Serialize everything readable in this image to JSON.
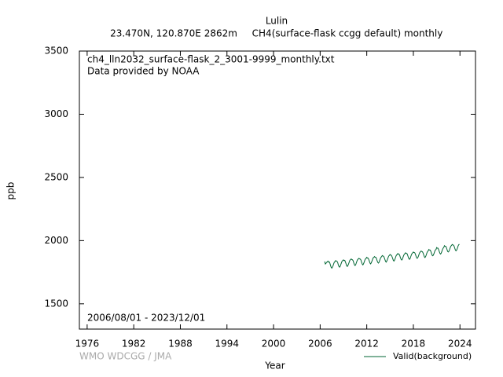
{
  "chart_data": {
    "type": "line",
    "title": "Lulin",
    "subtitle": [
      "23.470N, 120.870E 2862m",
      "CH4(surface-flask ccgg default) monthly"
    ],
    "annotations": [
      "ch4_lln2032_surface-flask_2_3001-9999_monthly.txt",
      "Data provided by NOAA",
      "2006/08/01 - 2023/12/01"
    ],
    "credit": "WMO WDCGG / JMA",
    "xlabel": "Year",
    "ylabel": "ppb",
    "xlim": [
      1975,
      2026
    ],
    "ylim": [
      1300,
      3500
    ],
    "xticks": [
      1976,
      1982,
      1988,
      1994,
      2000,
      2006,
      2012,
      2018,
      2024
    ],
    "yticks": [
      1500,
      2000,
      2500,
      3000,
      3500
    ],
    "legend": "bottom-right",
    "x": [
      2006.58,
      2006.67,
      2006.75,
      2006.83,
      2006.92,
      2007,
      2007.08,
      2007.17,
      2007.25,
      2007.33,
      2007.42,
      2007.5,
      2007.58,
      2007.67,
      2007.75,
      2007.83,
      2007.92,
      2008,
      2008.08,
      2008.17,
      2008.25,
      2008.33,
      2008.42,
      2008.5,
      2008.58,
      2008.67,
      2008.75,
      2008.83,
      2008.92,
      2009,
      2009.08,
      2009.17,
      2009.25,
      2009.33,
      2009.42,
      2009.5,
      2009.58,
      2009.67,
      2009.75,
      2009.83,
      2009.92,
      2010,
      2010.08,
      2010.17,
      2010.25,
      2010.33,
      2010.42,
      2010.5,
      2010.58,
      2010.67,
      2010.75,
      2010.83,
      2010.92,
      2011,
      2011.08,
      2011.17,
      2011.25,
      2011.33,
      2011.42,
      2011.5,
      2011.58,
      2011.67,
      2011.75,
      2011.83,
      2011.92,
      2012,
      2012.08,
      2012.17,
      2012.25,
      2012.33,
      2012.42,
      2012.5,
      2012.58,
      2012.67,
      2012.75,
      2012.83,
      2012.92,
      2013,
      2013.08,
      2013.17,
      2013.25,
      2013.33,
      2013.42,
      2013.5,
      2013.58,
      2013.67,
      2013.75,
      2013.83,
      2013.92,
      2014,
      2014.08,
      2014.17,
      2014.25,
      2014.33,
      2014.42,
      2014.5,
      2014.58,
      2014.67,
      2014.75,
      2014.83,
      2014.92,
      2015,
      2015.08,
      2015.17,
      2015.25,
      2015.33,
      2015.42,
      2015.5,
      2015.58,
      2015.67,
      2015.75,
      2015.83,
      2015.92,
      2016,
      2016.08,
      2016.17,
      2016.25,
      2016.33,
      2016.42,
      2016.5,
      2016.58,
      2016.67,
      2016.75,
      2016.83,
      2016.92,
      2017,
      2017.08,
      2017.17,
      2017.25,
      2017.33,
      2017.42,
      2017.5,
      2017.58,
      2017.67,
      2017.75,
      2017.83,
      2017.92,
      2018,
      2018.08,
      2018.17,
      2018.25,
      2018.33,
      2018.42,
      2018.5,
      2018.58,
      2018.67,
      2018.75,
      2018.83,
      2018.92,
      2019,
      2019.08,
      2019.17,
      2019.25,
      2019.33,
      2019.42,
      2019.5,
      2019.58,
      2019.67,
      2019.75,
      2019.83,
      2019.92,
      2020,
      2020.08,
      2020.17,
      2020.25,
      2020.33,
      2020.42,
      2020.5,
      2020.58,
      2020.67,
      2020.75,
      2020.83,
      2020.92,
      2021,
      2021.08,
      2021.17,
      2021.25,
      2021.33,
      2021.42,
      2021.5,
      2021.58,
      2021.67,
      2021.75,
      2021.83,
      2021.92,
      2022,
      2022.08,
      2022.17,
      2022.25,
      2022.33,
      2022.42,
      2022.5,
      2022.58,
      2022.67,
      2022.75,
      2022.83,
      2022.92,
      2023,
      2023.08,
      2023.17,
      2023.25,
      2023.33,
      2023.42,
      2023.5,
      2023.58,
      2023.67,
      2023.75,
      2023.83,
      2023.92
    ],
    "series": [
      {
        "name": "Valid(background)",
        "color": "#006633",
        "values": [
          1835,
          1815,
          1820,
          1828,
          1832,
          1838,
          1830,
          1832,
          1822,
          1805,
          1788,
          1782,
          1790,
          1803,
          1818,
          1830,
          1834,
          1842,
          1838,
          1836,
          1828,
          1810,
          1796,
          1790,
          1797,
          1812,
          1826,
          1838,
          1843,
          1848,
          1842,
          1844,
          1832,
          1818,
          1800,
          1796,
          1804,
          1818,
          1832,
          1845,
          1850,
          1855,
          1850,
          1848,
          1840,
          1824,
          1808,
          1803,
          1810,
          1826,
          1840,
          1850,
          1856,
          1860,
          1855,
          1854,
          1846,
          1830,
          1814,
          1808,
          1816,
          1830,
          1845,
          1855,
          1860,
          1868,
          1862,
          1862,
          1852,
          1838,
          1822,
          1816,
          1824,
          1838,
          1852,
          1864,
          1868,
          1874,
          1868,
          1868,
          1858,
          1842,
          1828,
          1822,
          1828,
          1844,
          1858,
          1868,
          1874,
          1882,
          1878,
          1876,
          1866,
          1852,
          1836,
          1830,
          1838,
          1852,
          1866,
          1878,
          1884,
          1890,
          1885,
          1884,
          1874,
          1860,
          1844,
          1838,
          1846,
          1860,
          1875,
          1886,
          1890,
          1898,
          1892,
          1892,
          1882,
          1866,
          1852,
          1846,
          1852,
          1868,
          1882,
          1892,
          1898,
          1904,
          1898,
          1898,
          1888,
          1872,
          1858,
          1852,
          1858,
          1874,
          1888,
          1898,
          1904,
          1910,
          1906,
          1905,
          1895,
          1880,
          1864,
          1860,
          1866,
          1880,
          1895,
          1906,
          1912,
          1918,
          1914,
          1912,
          1902,
          1888,
          1872,
          1866,
          1874,
          1888,
          1904,
          1914,
          1920,
          1930,
          1925,
          1925,
          1915,
          1900,
          1884,
          1880,
          1886,
          1900,
          1915,
          1926,
          1930,
          1945,
          1940,
          1940,
          1930,
          1915,
          1900,
          1894,
          1900,
          1915,
          1930,
          1940,
          1946,
          1960,
          1955,
          1955,
          1945,
          1930,
          1914,
          1910,
          1916,
          1930,
          1945,
          1956,
          1962,
          1970,
          1966,
          1964,
          1955,
          1940,
          1924,
          1920,
          1926,
          1940,
          1956,
          1966,
          1972
        ]
      }
    ]
  }
}
